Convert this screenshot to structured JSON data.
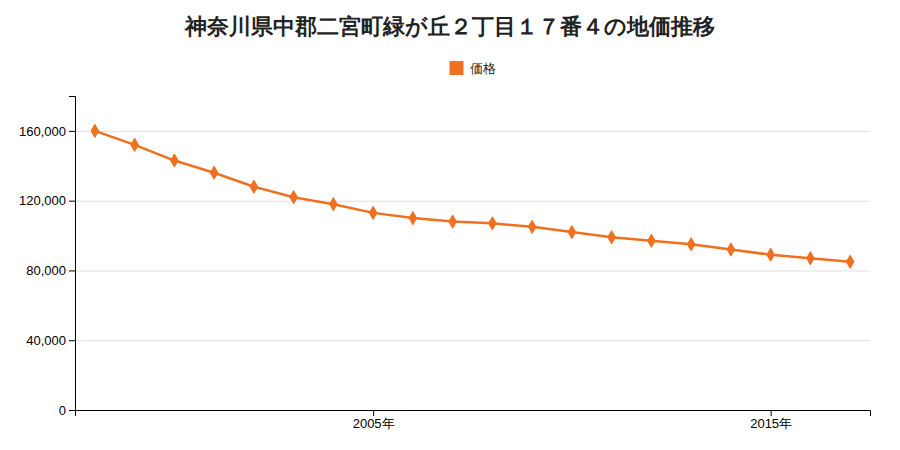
{
  "chart_data": {
    "type": "line",
    "title": "神奈川県中郡二宮町緑が丘２丁目１７番４の地価推移",
    "x": [
      1998,
      1999,
      2000,
      2001,
      2002,
      2003,
      2004,
      2005,
      2006,
      2007,
      2008,
      2009,
      2010,
      2011,
      2012,
      2013,
      2014,
      2015,
      2016,
      2017
    ],
    "series": [
      {
        "name": "価格",
        "color": "#f07020",
        "marker": "diamond",
        "line_style": "solid",
        "values": [
          160000,
          152000,
          143000,
          136000,
          128000,
          122000,
          118000,
          113000,
          110000,
          108000,
          107000,
          105000,
          102000,
          99000,
          97000,
          95000,
          92000,
          89000,
          87000,
          85000
        ]
      }
    ],
    "xlim": [
      1997.5,
      2017.5
    ],
    "xticks": [
      {
        "value": 2005,
        "label": "2005年"
      },
      {
        "value": 2015,
        "label": "2015年"
      }
    ],
    "ylim": [
      0,
      180000
    ],
    "yticks": [
      0,
      {
        "value": 40000,
        "label": "40,000"
      },
      {
        "value": 80000,
        "label": "80,000"
      },
      {
        "value": 120000,
        "label": "120,000"
      },
      {
        "value": 160000,
        "label": "160,000"
      }
    ],
    "grid": true,
    "legend": "top"
  }
}
